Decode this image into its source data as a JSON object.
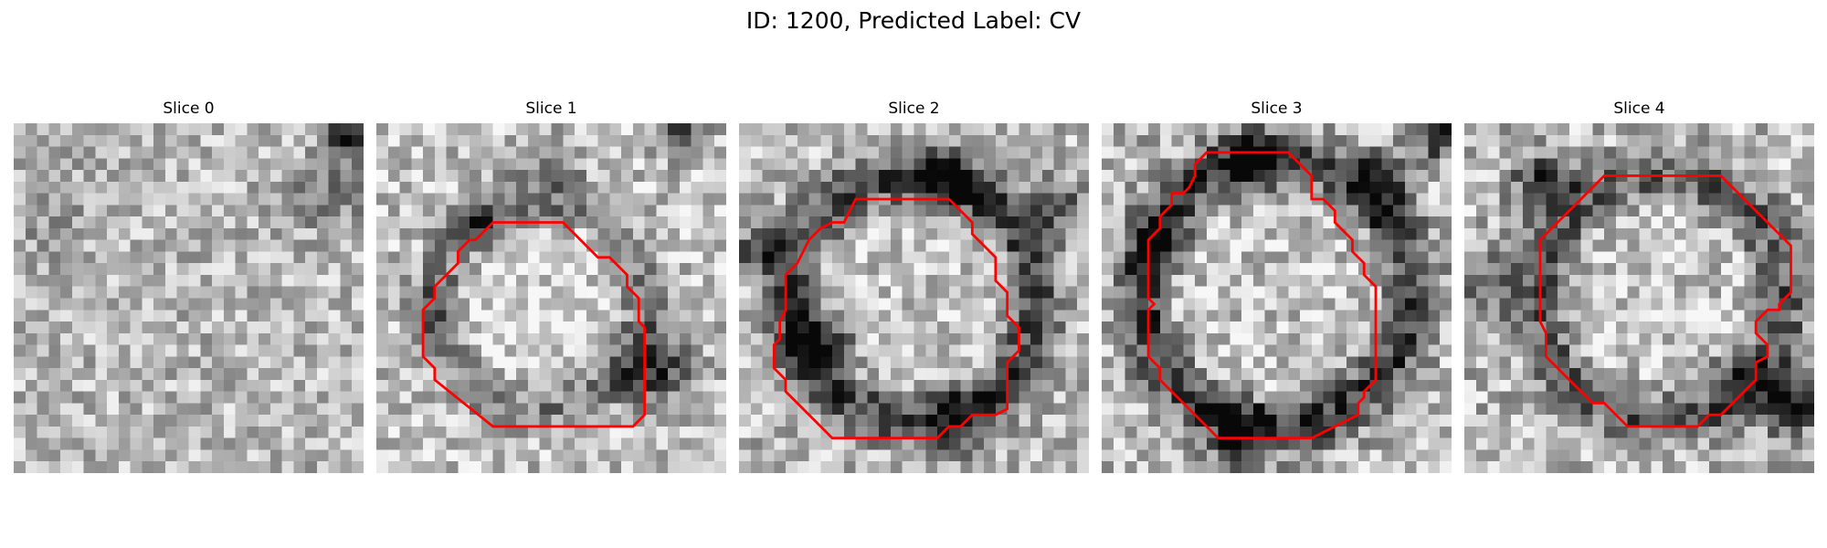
{
  "figure": {
    "title": "ID: 1200, Predicted Label: CV"
  },
  "colors": {
    "contour": "#ff0000",
    "background": "#ffffff"
  },
  "panels": [
    {
      "title": "Slice 0",
      "has_contour": false
    },
    {
      "title": "Slice 1",
      "has_contour": true
    },
    {
      "title": "Slice 2",
      "has_contour": true
    },
    {
      "title": "Slice 3",
      "has_contour": true
    },
    {
      "title": "Slice 4",
      "has_contour": true
    }
  ]
}
